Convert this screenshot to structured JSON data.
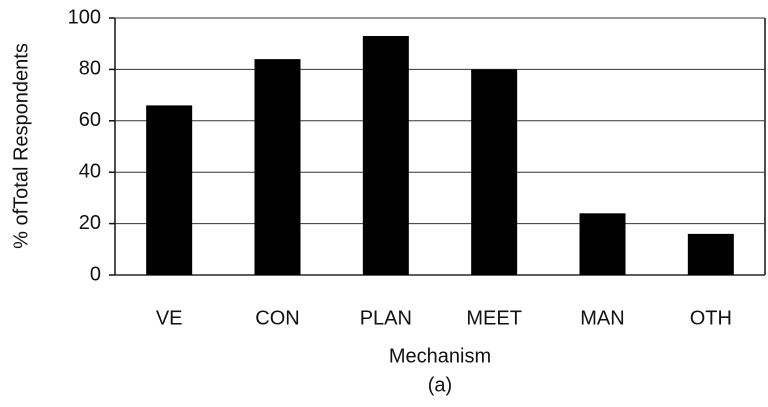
{
  "chart_data": {
    "type": "bar",
    "categories": [
      "VE",
      "CON",
      "PLAN",
      "MEET",
      "MAN",
      "OTH"
    ],
    "values": [
      66,
      84,
      93,
      80,
      24,
      16
    ],
    "color": "#000000",
    "xlabel": "Mechanism",
    "ylabel": "% ofTotal Respondents",
    "caption": "(a)",
    "ylim": [
      0,
      100
    ],
    "yticks": [
      0,
      20,
      40,
      60,
      80,
      100
    ],
    "grid": true
  }
}
